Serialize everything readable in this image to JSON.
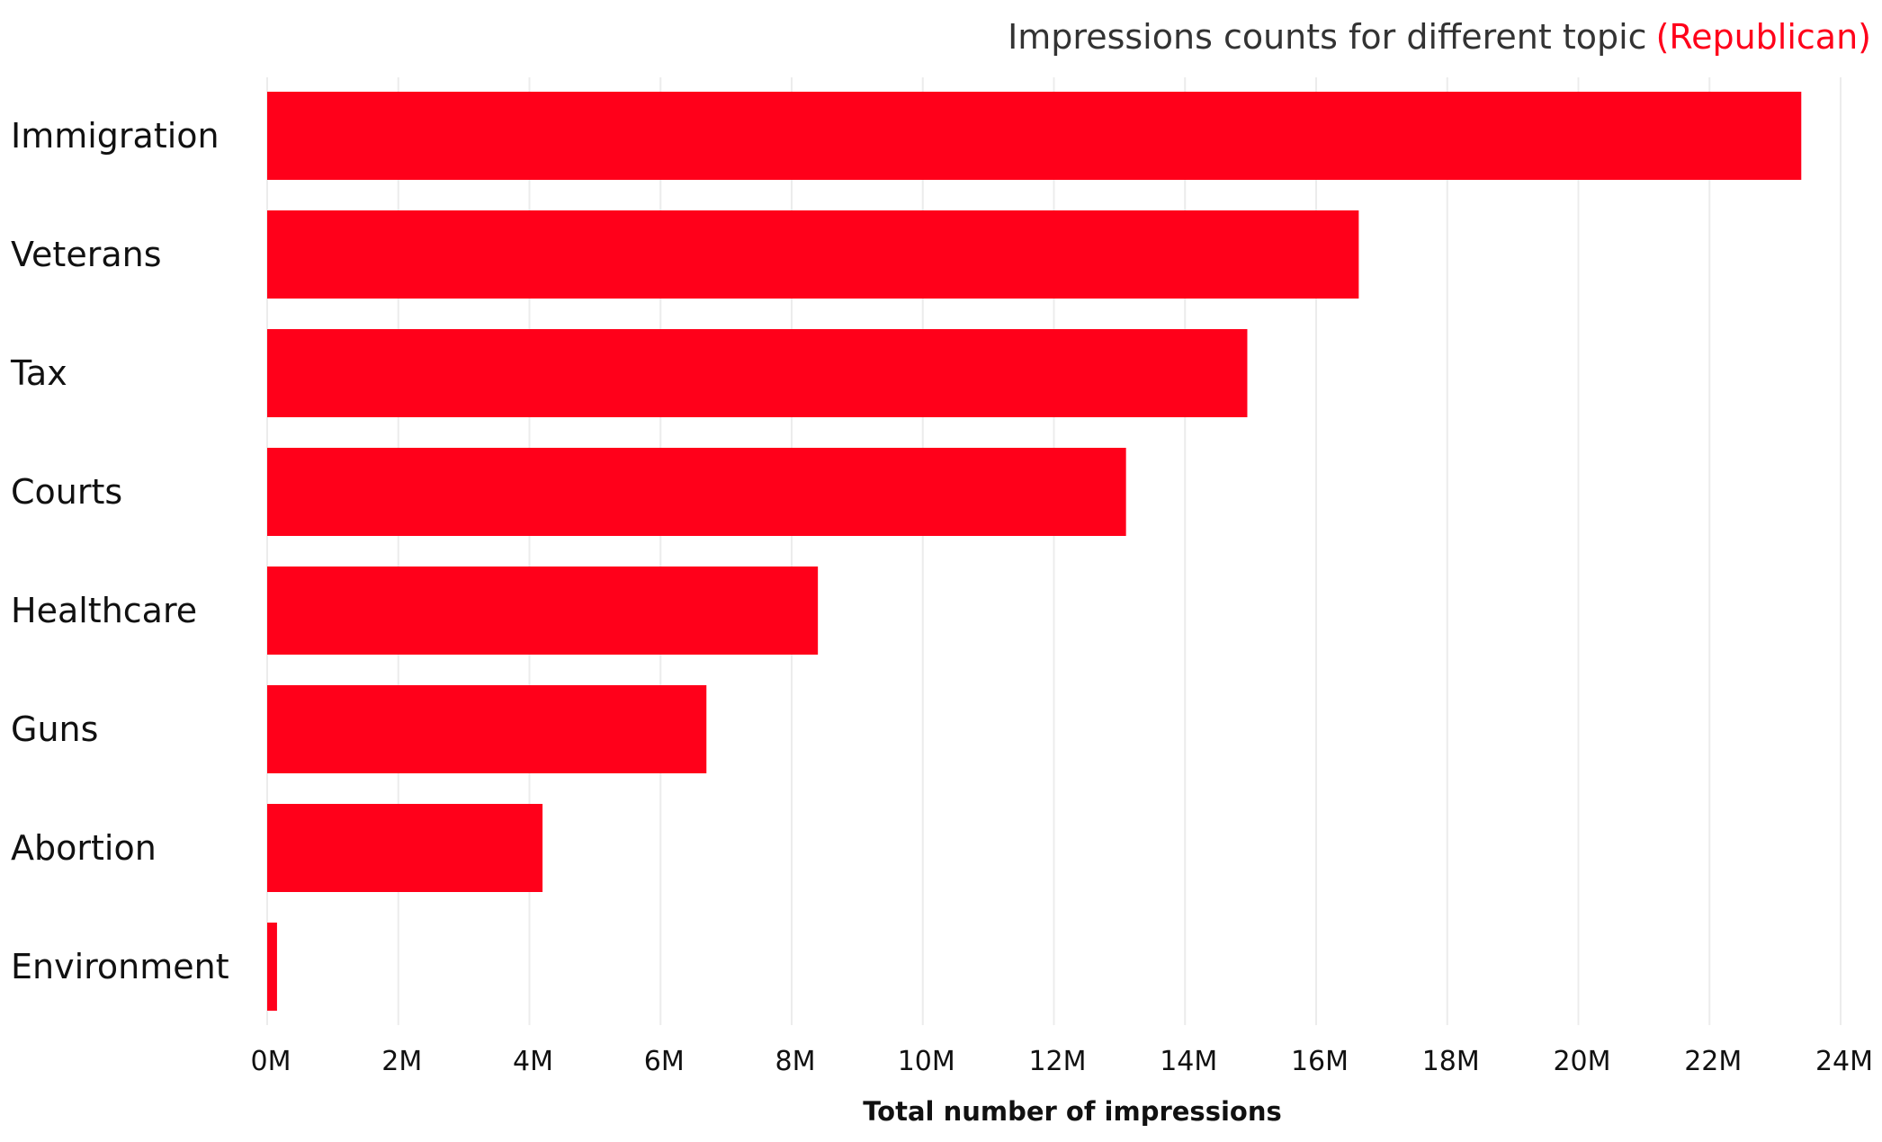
{
  "chart_data": {
    "type": "bar",
    "orientation": "horizontal",
    "title": "Impressions counts for different topic",
    "title_highlight": "(Republican)",
    "title_highlight_color": "#ff001a",
    "categories": [
      "Immigration",
      "Veterans",
      "Tax",
      "Courts",
      "Healthcare",
      "Guns",
      "Abortion",
      "Environment"
    ],
    "values": [
      23400000,
      16650000,
      14950000,
      13100000,
      8400000,
      6700000,
      4200000,
      150000
    ],
    "bar_color": "#ff001a",
    "xlabel": "Total number of impressions",
    "ylabel": "",
    "xlim": [
      0,
      24000000
    ],
    "x_ticks": [
      {
        "value": 0,
        "label": "0M"
      },
      {
        "value": 2000000,
        "label": "2M"
      },
      {
        "value": 4000000,
        "label": "4M"
      },
      {
        "value": 6000000,
        "label": "6M"
      },
      {
        "value": 8000000,
        "label": "8M"
      },
      {
        "value": 10000000,
        "label": "10M"
      },
      {
        "value": 12000000,
        "label": "12M"
      },
      {
        "value": 14000000,
        "label": "14M"
      },
      {
        "value": 16000000,
        "label": "16M"
      },
      {
        "value": 18000000,
        "label": "18M"
      },
      {
        "value": 20000000,
        "label": "20M"
      },
      {
        "value": 22000000,
        "label": "22M"
      },
      {
        "value": 24000000,
        "label": "24M"
      }
    ],
    "grid": true,
    "legend": "none"
  }
}
